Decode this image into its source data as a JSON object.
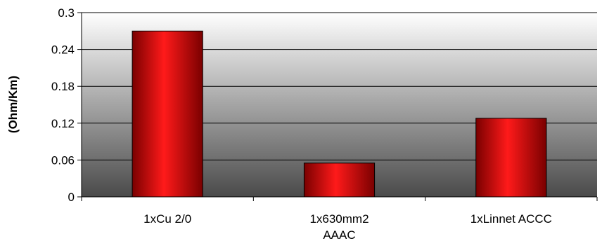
{
  "chart_data": {
    "type": "bar",
    "title": "",
    "xlabel": "",
    "ylabel": "(Ohm/Km)",
    "ylim": [
      0,
      0.3
    ],
    "yticks": [
      0,
      0.06,
      0.12,
      0.18,
      0.24,
      0.3
    ],
    "ytick_labels": [
      "0",
      "0.06",
      "0.12",
      "0.18",
      "0.24",
      "0.3"
    ],
    "grid": true,
    "legend": "none",
    "categories": [
      [
        "1xCu 2/0"
      ],
      [
        "1x630mm2",
        "AAAC"
      ],
      [
        "1xLinnet ACCC"
      ]
    ],
    "values": [
      0.27,
      0.055,
      0.128
    ],
    "colors": {
      "bar_dark": "#7a0000",
      "bar_light": "#ff1a1a",
      "background_top": "#ffffff",
      "background_bottom": "#4a4a4a",
      "gridline": "#000000"
    }
  }
}
